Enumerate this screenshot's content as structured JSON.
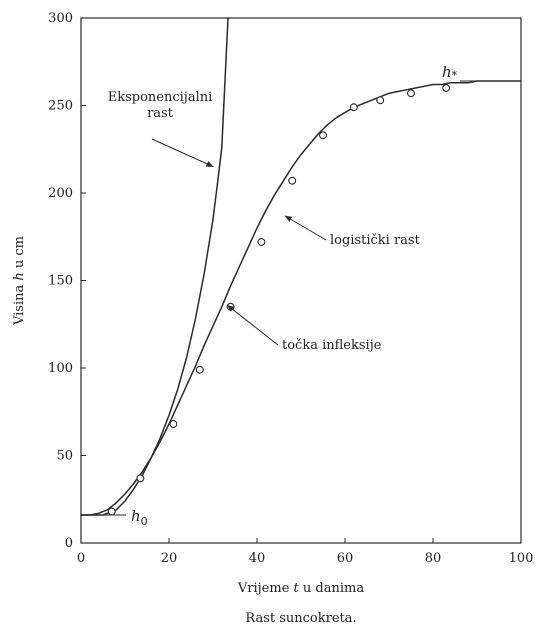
{
  "chart_data": {
    "type": "line",
    "title": "",
    "caption": "Rast suncokreta.",
    "xlabel_parts": [
      {
        "text": "Vrijeme ",
        "italic": false
      },
      {
        "text": "t",
        "italic": true
      },
      {
        "text": " u danima",
        "italic": false
      }
    ],
    "ylabel_parts": [
      {
        "text": "Visina ",
        "italic": false
      },
      {
        "text": "h",
        "italic": true
      },
      {
        "text": " u cm",
        "italic": false
      }
    ],
    "xlim": [
      0,
      100
    ],
    "ylim": [
      0,
      300
    ],
    "x_ticks": [
      0,
      20,
      40,
      60,
      80,
      100
    ],
    "y_ticks": [
      0,
      50,
      100,
      150,
      200,
      250,
      300
    ],
    "grid": false,
    "series": [
      {
        "kind": "line",
        "x": [
          0,
          2,
          4,
          6,
          8,
          10,
          12,
          14,
          16,
          18,
          20,
          22,
          24,
          26,
          28,
          30,
          32,
          34,
          36,
          38,
          40,
          42,
          44,
          46,
          48,
          50,
          52,
          54,
          56,
          58,
          60,
          62,
          64,
          66,
          68,
          70,
          72,
          74,
          76,
          78,
          80,
          82,
          84,
          86,
          88,
          90,
          92,
          94,
          96,
          98,
          100
        ],
        "y": [
          16,
          16,
          17,
          19,
          23,
          28,
          34,
          41,
          49,
          58,
          68,
          79,
          90,
          101,
          113,
          124,
          135,
          147,
          158,
          169,
          180,
          190,
          199,
          207,
          215,
          222,
          228,
          234,
          239,
          243,
          246,
          249,
          251,
          253,
          255,
          257,
          258,
          259,
          260,
          261,
          262,
          262,
          263,
          263,
          263,
          264,
          264,
          264,
          264,
          264,
          264
        ]
      },
      {
        "kind": "line",
        "x": [
          0,
          5,
          8,
          10,
          12,
          14,
          16,
          18,
          20,
          22,
          24,
          26,
          28,
          30,
          31,
          32,
          33.4
        ],
        "y": [
          16,
          16,
          19,
          24,
          31,
          39,
          49,
          60,
          73,
          88,
          106,
          128,
          154,
          185,
          205,
          226,
          300
        ]
      },
      {
        "kind": "points",
        "x": [
          7,
          13.5,
          21,
          27,
          34,
          41,
          48,
          55,
          62,
          68,
          75,
          83
        ],
        "y": [
          18,
          37,
          68,
          99,
          135,
          172,
          207,
          233,
          249,
          253,
          257,
          260
        ]
      }
    ],
    "annotations": [
      {
        "name": "exponential-label",
        "lines": [
          "Eksponencijalni",
          "rast"
        ]
      },
      {
        "name": "logistic-label",
        "lines": [
          "logistički rast"
        ]
      },
      {
        "name": "inflection-label",
        "lines": [
          "točka infleksije"
        ]
      },
      {
        "name": "h-zero-label",
        "symbol": "h",
        "subscript": "0"
      },
      {
        "name": "h-star-label",
        "symbol": "h",
        "subscript": "*"
      }
    ]
  }
}
